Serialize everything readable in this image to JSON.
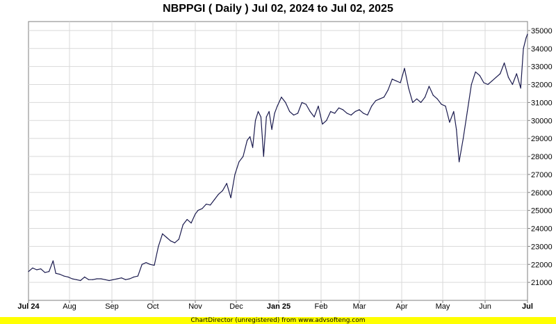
{
  "chart_data": {
    "type": "line",
    "title": "NBPPGI ( Daily ) Jul 02, 2024 to Jul 02, 2025",
    "xlabel": "",
    "ylabel": "",
    "ylim": [
      20000,
      35500
    ],
    "grid": true,
    "y_ticks": [
      "21000",
      "22000",
      "23000",
      "24000",
      "25000",
      "26000",
      "27000",
      "28000",
      "29000",
      "30000",
      "31000",
      "32000",
      "33000",
      "34000",
      "35000"
    ],
    "x_ticks": [
      {
        "label": "Jul 24",
        "date": "2024-07-02",
        "bold": true
      },
      {
        "label": "Aug",
        "date": "2024-08-01",
        "bold": false
      },
      {
        "label": "Sep",
        "date": "2024-09-01",
        "bold": false
      },
      {
        "label": "Oct",
        "date": "2024-10-01",
        "bold": false
      },
      {
        "label": "Nov",
        "date": "2024-11-01",
        "bold": false
      },
      {
        "label": "Dec",
        "date": "2024-12-01",
        "bold": false
      },
      {
        "label": "Jan 25",
        "date": "2025-01-01",
        "bold": true
      },
      {
        "label": "Feb",
        "date": "2025-02-01",
        "bold": false
      },
      {
        "label": "Mar",
        "date": "2025-03-01",
        "bold": false
      },
      {
        "label": "Apr",
        "date": "2025-04-01",
        "bold": false
      },
      {
        "label": "May",
        "date": "2025-05-01",
        "bold": false
      },
      {
        "label": "Jun",
        "date": "2025-06-01",
        "bold": false
      },
      {
        "label": "Jul",
        "date": "2025-07-02",
        "bold": true
      }
    ],
    "line_color": "#1a1a4e",
    "series": [
      {
        "x": [
          "2024-07-02",
          "2024-07-05",
          "2024-07-08",
          "2024-07-11",
          "2024-07-14",
          "2024-07-17",
          "2024-07-20",
          "2024-07-22",
          "2024-07-25",
          "2024-07-28",
          "2024-07-31",
          "2024-08-03",
          "2024-08-06",
          "2024-08-09",
          "2024-08-12",
          "2024-08-15",
          "2024-08-18",
          "2024-08-21",
          "2024-08-24",
          "2024-08-27",
          "2024-08-30",
          "2024-09-02",
          "2024-09-05",
          "2024-09-08",
          "2024-09-11",
          "2024-09-14",
          "2024-09-17",
          "2024-09-20",
          "2024-09-23",
          "2024-09-26",
          "2024-09-29",
          "2024-10-02",
          "2024-10-05",
          "2024-10-08",
          "2024-10-11",
          "2024-10-14",
          "2024-10-17",
          "2024-10-20",
          "2024-10-23",
          "2024-10-26",
          "2024-10-29",
          "2024-11-01",
          "2024-11-03",
          "2024-11-06",
          "2024-11-09",
          "2024-11-12",
          "2024-11-15",
          "2024-11-18",
          "2024-11-21",
          "2024-11-24",
          "2024-11-27",
          "2024-11-30",
          "2024-12-03",
          "2024-12-06",
          "2024-12-09",
          "2024-12-11",
          "2024-12-13",
          "2024-12-15",
          "2024-12-17",
          "2024-12-19",
          "2024-12-21",
          "2024-12-23",
          "2024-12-25",
          "2024-12-27",
          "2024-12-29",
          "2024-12-31",
          "2025-01-03",
          "2025-01-06",
          "2025-01-09",
          "2025-01-12",
          "2025-01-15",
          "2025-01-18",
          "2025-01-21",
          "2025-01-24",
          "2025-01-27",
          "2025-01-30",
          "2025-02-02",
          "2025-02-05",
          "2025-02-08",
          "2025-02-11",
          "2025-02-14",
          "2025-02-17",
          "2025-02-20",
          "2025-02-23",
          "2025-02-26",
          "2025-03-01",
          "2025-03-04",
          "2025-03-07",
          "2025-03-10",
          "2025-03-13",
          "2025-03-16",
          "2025-03-19",
          "2025-03-22",
          "2025-03-25",
          "2025-03-28",
          "2025-03-31",
          "2025-04-03",
          "2025-04-06",
          "2025-04-09",
          "2025-04-12",
          "2025-04-15",
          "2025-04-18",
          "2025-04-21",
          "2025-04-24",
          "2025-04-27",
          "2025-04-30",
          "2025-05-03",
          "2025-05-06",
          "2025-05-09",
          "2025-05-11",
          "2025-05-13",
          "2025-05-16",
          "2025-05-19",
          "2025-05-22",
          "2025-05-25",
          "2025-05-28",
          "2025-05-31",
          "2025-06-03",
          "2025-06-06",
          "2025-06-09",
          "2025-06-12",
          "2025-06-15",
          "2025-06-18",
          "2025-06-21",
          "2025-06-24",
          "2025-06-27",
          "2025-06-29",
          "2025-07-01",
          "2025-07-02"
        ],
        "y": [
          21600,
          21800,
          21700,
          21750,
          21550,
          21600,
          22200,
          21500,
          21450,
          21350,
          21300,
          21200,
          21150,
          21100,
          21300,
          21150,
          21150,
          21200,
          21200,
          21150,
          21100,
          21150,
          21200,
          21250,
          21150,
          21200,
          21300,
          21350,
          22000,
          22100,
          22000,
          21950,
          23000,
          23700,
          23500,
          23300,
          23200,
          23400,
          24200,
          24500,
          24300,
          24800,
          25000,
          25100,
          25350,
          25300,
          25600,
          25900,
          26100,
          26500,
          25700,
          27000,
          27700,
          28000,
          28900,
          29100,
          28500,
          30000,
          30500,
          30200,
          28000,
          30200,
          30500,
          29500,
          30400,
          30800,
          31300,
          31000,
          30500,
          30300,
          30400,
          31000,
          30900,
          30500,
          30200,
          30800,
          29800,
          30000,
          30500,
          30400,
          30700,
          30600,
          30400,
          30300,
          30500,
          30600,
          30400,
          30300,
          30800,
          31100,
          31200,
          31300,
          31700,
          32300,
          32200,
          32100,
          32900,
          31800,
          31000,
          31200,
          31000,
          31300,
          31900,
          31400,
          31200,
          30900,
          30800,
          29900,
          30500,
          29500,
          27700,
          29000,
          30500,
          32000,
          32700,
          32500,
          32100,
          32000,
          32200,
          32400,
          32600,
          33200,
          32400,
          32000,
          32600,
          31800,
          34000,
          34600,
          34800
        ]
      }
    ]
  },
  "footer_text": "ChartDirector (unregistered) from www.advsofteng.com"
}
